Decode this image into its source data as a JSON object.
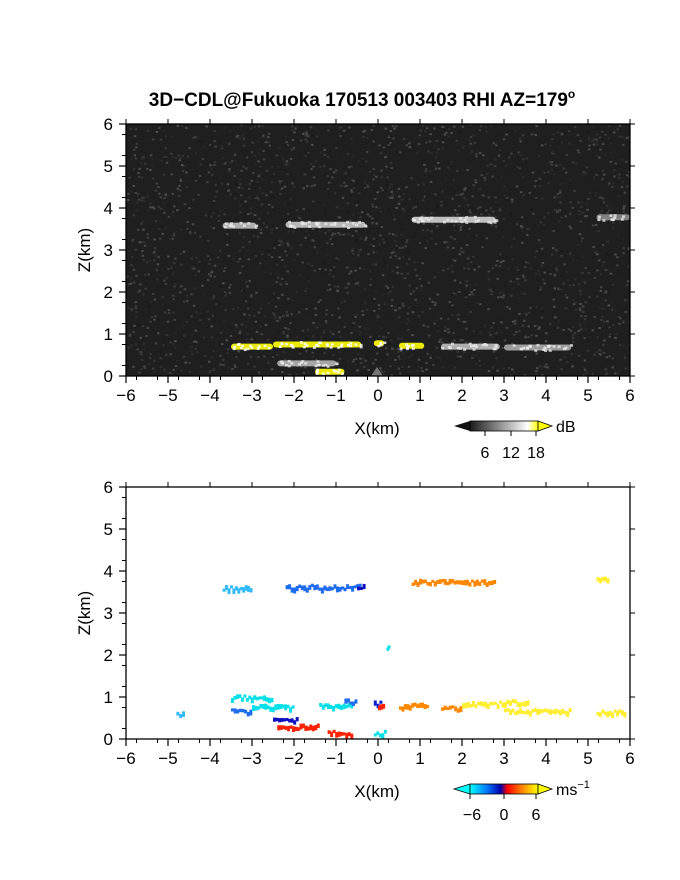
{
  "title": "3D−CDL@Fukuoka 170513 003403 RHI AZ=179",
  "title_sup": "o",
  "chart_data": [
    {
      "type": "heatmap",
      "name": "reflectivity",
      "xlabel": "X(km)",
      "ylabel": "Z(km)",
      "xlim": [
        -6,
        6
      ],
      "ylim": [
        0,
        6
      ],
      "x_ticks": [
        "−6",
        "−5",
        "−4",
        "−3",
        "−2",
        "−1",
        "0",
        "1",
        "2",
        "3",
        "4",
        "5",
        "6"
      ],
      "y_ticks": [
        "0",
        "1",
        "2",
        "3",
        "4",
        "5",
        "6"
      ],
      "background": "#1f1f1f",
      "colorbar": {
        "unit": "dB",
        "ticks": [
          "6",
          "12",
          "18"
        ],
        "range": [
          0,
          20
        ],
        "colors": [
          "#202020",
          "#ffffff",
          "#ffff00"
        ]
      },
      "features": [
        {
          "x": [
            -3.7,
            -2.9
          ],
          "z": 3.58,
          "value": 11
        },
        {
          "x": [
            -2.2,
            -0.3
          ],
          "z": 3.6,
          "value": 12
        },
        {
          "x": [
            0.8,
            2.8
          ],
          "z": 3.72,
          "value": 13
        },
        {
          "x": [
            5.2,
            6.0
          ],
          "z": 3.78,
          "value": 6
        },
        {
          "x": [
            -3.5,
            -2.5
          ],
          "z": 0.7,
          "value": 18
        },
        {
          "x": [
            -2.5,
            -0.4
          ],
          "z": 0.75,
          "value": 19
        },
        {
          "x": [
            -0.1,
            0.15
          ],
          "z": 0.78,
          "value": 20
        },
        {
          "x": [
            0.5,
            1.1
          ],
          "z": 0.72,
          "value": 18
        },
        {
          "x": [
            1.5,
            2.9
          ],
          "z": 0.7,
          "value": 11
        },
        {
          "x": [
            3.0,
            4.6
          ],
          "z": 0.68,
          "value": 9
        },
        {
          "x": [
            -2.4,
            -1.0
          ],
          "z": 0.3,
          "value": 10
        },
        {
          "x": [
            -1.5,
            -0.8
          ],
          "z": 0.1,
          "value": 18
        }
      ]
    },
    {
      "type": "heatmap",
      "name": "doppler velocity",
      "xlabel": "X(km)",
      "ylabel": "Z(km)",
      "xlim": [
        -6,
        6
      ],
      "ylim": [
        0,
        6
      ],
      "x_ticks": [
        "−6",
        "−5",
        "−4",
        "−3",
        "−2",
        "−1",
        "0",
        "1",
        "2",
        "3",
        "4",
        "5",
        "6"
      ],
      "y_ticks": [
        "0",
        "1",
        "2",
        "3",
        "4",
        "5",
        "6"
      ],
      "colorbar": {
        "unit": "ms",
        "unit_sup": "−1",
        "ticks": [
          "−6",
          "0",
          "6"
        ],
        "range": [
          -9,
          9
        ],
        "colors": [
          "#00ffff",
          "#0066ff",
          "#0000aa",
          "#ff0000",
          "#ff8800",
          "#ffff00"
        ]
      },
      "features": [
        {
          "x": [
            -3.7,
            -3.0
          ],
          "z": 3.55,
          "value": -5,
          "color": "#33bbff"
        },
        {
          "x": [
            -2.2,
            -0.4
          ],
          "z": 3.58,
          "value": -6,
          "color": "#1e6cf0"
        },
        {
          "x": [
            -0.5,
            -0.3
          ],
          "z": 3.58,
          "value": -1,
          "color": "#1010c0"
        },
        {
          "x": [
            0.8,
            2.8
          ],
          "z": 3.7,
          "value": 4,
          "color": "#ff8800"
        },
        {
          "x": [
            5.2,
            5.5
          ],
          "z": 3.8,
          "value": 7,
          "color": "#ffee33"
        },
        {
          "x": [
            0.2,
            0.25
          ],
          "z": 2.15,
          "value": -8,
          "color": "#00e0e8"
        },
        {
          "x": [
            -4.8,
            -4.6
          ],
          "z": 0.55,
          "value": -6,
          "color": "#33bbff"
        },
        {
          "x": [
            -3.5,
            -2.5
          ],
          "z": 0.95,
          "value": -8,
          "color": "#00e0e8"
        },
        {
          "x": [
            -3.5,
            -3.0
          ],
          "z": 0.62,
          "value": -6,
          "color": "#1e6cf0"
        },
        {
          "x": [
            -3.0,
            -2.0
          ],
          "z": 0.72,
          "value": -8,
          "color": "#00e0e8"
        },
        {
          "x": [
            -1.4,
            -0.6
          ],
          "z": 0.75,
          "value": -8,
          "color": "#00e0e8"
        },
        {
          "x": [
            -0.8,
            -0.5
          ],
          "z": 0.85,
          "value": -6,
          "color": "#1e6cf0"
        },
        {
          "x": [
            -0.1,
            0.1
          ],
          "z": 0.8,
          "value": -2,
          "color": "#0a20d0"
        },
        {
          "x": [
            0.0,
            0.15
          ],
          "z": 0.72,
          "value": 2,
          "color": "#ff2200"
        },
        {
          "x": [
            0.5,
            1.2
          ],
          "z": 0.75,
          "value": 4,
          "color": "#ff8800"
        },
        {
          "x": [
            1.5,
            2.0
          ],
          "z": 0.7,
          "value": 4,
          "color": "#ff8800"
        },
        {
          "x": [
            2.0,
            3.0
          ],
          "z": 0.8,
          "value": 7,
          "color": "#ffee33"
        },
        {
          "x": [
            3.0,
            3.6
          ],
          "z": 0.85,
          "value": 7,
          "color": "#ffee33"
        },
        {
          "x": [
            3.0,
            4.6
          ],
          "z": 0.63,
          "value": 7,
          "color": "#ffee33"
        },
        {
          "x": [
            5.2,
            5.9
          ],
          "z": 0.6,
          "value": 7,
          "color": "#ffee33"
        },
        {
          "x": [
            -2.5,
            -1.9
          ],
          "z": 0.42,
          "value": -1,
          "color": "#1010c0"
        },
        {
          "x": [
            -2.4,
            -1.4
          ],
          "z": 0.25,
          "value": 2,
          "color": "#ff2200"
        },
        {
          "x": [
            -1.2,
            -0.6
          ],
          "z": 0.1,
          "value": 2,
          "color": "#ff2200"
        },
        {
          "x": [
            -0.1,
            0.2
          ],
          "z": 0.1,
          "value": -8,
          "color": "#00e0e8"
        }
      ]
    }
  ]
}
